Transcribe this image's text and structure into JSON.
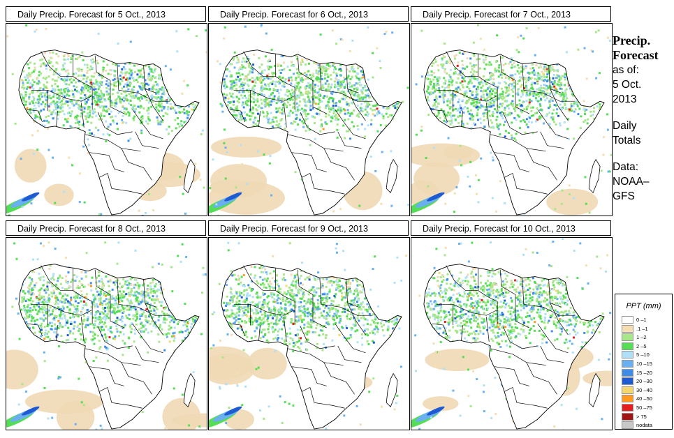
{
  "panels": [
    {
      "title": "Daily Precip. Forecast for  5 Oct., 2013",
      "seed": 11
    },
    {
      "title": "Daily Precip. Forecast for  6 Oct., 2013",
      "seed": 23
    },
    {
      "title": "Daily Precip. Forecast for  7 Oct., 2013",
      "seed": 37
    },
    {
      "title": "Daily Precip. Forecast for  8 Oct., 2013",
      "seed": 41
    },
    {
      "title": "Daily Precip. Forecast for  9 Oct., 2013",
      "seed": 53
    },
    {
      "title": "Daily Precip. Forecast for  10 Oct., 2013",
      "seed": 67
    }
  ],
  "side": {
    "heading_line1": "Precip.",
    "heading_line2": "Forecast",
    "asof": "as of:",
    "date_line1": "5 Oct.",
    "date_line2": "2013",
    "daily_line1": "Daily",
    "daily_line2": "Totals",
    "data_line1": "Data:",
    "data_line2": "NOAA–",
    "data_line3": "GFS"
  },
  "legend": {
    "title": "PPT (mm)",
    "items": [
      {
        "label": "0 –1",
        "color": "#ffffff"
      },
      {
        "label": ".1 –1",
        "color": "#f5deb3"
      },
      {
        "label": "1 –2",
        "color": "#a8e68a"
      },
      {
        "label": "2 –5",
        "color": "#55dd55"
      },
      {
        "label": "5 –10",
        "color": "#b0e0f8"
      },
      {
        "label": "10 –15",
        "color": "#6ab0f0"
      },
      {
        "label": "15 –20",
        "color": "#3c8ce8"
      },
      {
        "label": "20 –30",
        "color": "#1e5ad2"
      },
      {
        "label": "30 –40",
        "color": "#f5d76e"
      },
      {
        "label": "40 –50",
        "color": "#ff9a1e"
      },
      {
        "label": "50 –75",
        "color": "#e41e1e"
      },
      {
        "label": "> 75",
        "color": "#a01414"
      },
      {
        "label": "nodata",
        "color": "#c8c8c8"
      }
    ]
  }
}
